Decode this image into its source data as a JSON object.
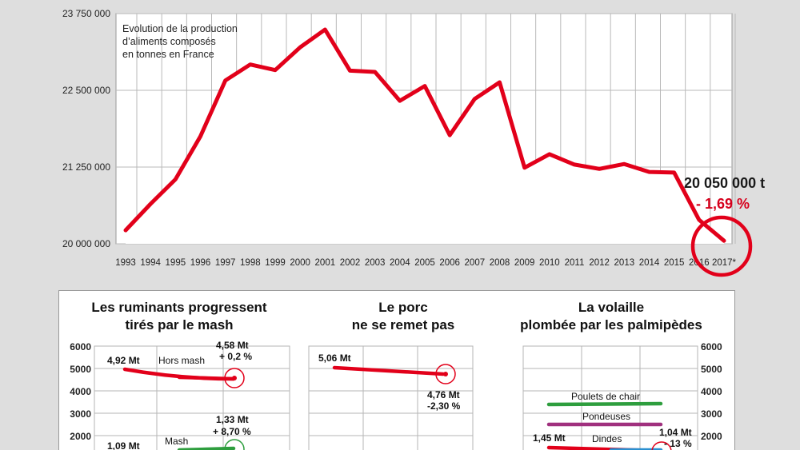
{
  "chart_data": [
    {
      "type": "line",
      "title": "Evolution de la production d’aliments composés en tonnes en France",
      "title_lines": [
        "Evolution de la production",
        "d’aliments composés",
        "en tonnes en France"
      ],
      "x": [
        "1993",
        "1994",
        "1995",
        "1996",
        "1997",
        "1998",
        "1999",
        "2000",
        "2001",
        "2002",
        "2003",
        "2004",
        "2005",
        "2006",
        "2007",
        "2008",
        "2009",
        "2010",
        "2011",
        "2012",
        "2013",
        "2014",
        "2015",
        "2016",
        "2017*"
      ],
      "series": [
        {
          "values": [
            20220000,
            20650000,
            21050000,
            21750000,
            22660000,
            22920000,
            22830000,
            23200000,
            23490000,
            22820000,
            22800000,
            22330000,
            22570000,
            21770000,
            22360000,
            22630000,
            21240000,
            21460000,
            21290000,
            21220000,
            21300000,
            21170000,
            21160000,
            20390000,
            20050000
          ]
        }
      ],
      "yticks": [
        "23 750 000",
        "22 500 000",
        "21 250 000",
        "20 000 000"
      ],
      "ytick_values": [
        23750000,
        22500000,
        21250000,
        20000000
      ],
      "ylim": [
        20000000,
        23750000
      ],
      "grid": true,
      "line_color": "#e2001a",
      "annotation": {
        "value": "20 050 000 t",
        "change": "- 1,69 %"
      }
    },
    {
      "type": "line",
      "title_lines": [
        "Les ruminants progressent",
        "tirés par le mash"
      ],
      "yticks": [
        "6000",
        "5000",
        "4000",
        "3000",
        "2000"
      ],
      "ytick_values": [
        6000,
        5000,
        4000,
        3000,
        2000
      ],
      "series": [
        {
          "name": "Hors mash",
          "values": [
            4920,
            4580
          ],
          "color": "#e2001a",
          "start_label": "4,92 Mt",
          "end_label": [
            "4,58 Mt",
            "+ 0,2 %"
          ]
        },
        {
          "name": "Mash",
          "values": [
            1090,
            1330
          ],
          "color": "#2e9e3e",
          "start_label": "1,09 Mt",
          "end_label": [
            "1,33 Mt",
            "+ 8,70 %"
          ]
        }
      ]
    },
    {
      "type": "line",
      "title_lines": [
        "Le porc",
        "ne se remet pas"
      ],
      "series": [
        {
          "values": [
            5060,
            4760
          ],
          "color": "#e2001a",
          "start_label": "5,06 Mt",
          "end_label": [
            "4,76 Mt",
            "-2,30 %"
          ]
        }
      ]
    },
    {
      "type": "line",
      "title_lines": [
        "La volaille",
        "plombée par les palmipèdes"
      ],
      "yticks": [
        "6000",
        "5000",
        "4000",
        "3000",
        "2000"
      ],
      "ytick_values": [
        6000,
        5000,
        4000,
        3000,
        2000
      ],
      "series": [
        {
          "name": "Poulets de chair",
          "color": "#2e9e3e"
        },
        {
          "name": "Pondeuses",
          "color": "#a0307e"
        },
        {
          "name": "Dindes",
          "values": [
            1450,
            1040
          ],
          "color": "#e2001a",
          "start_label": "1,45 Mt",
          "end_label": [
            "1,04 Mt",
            "- 13 %"
          ]
        }
      ]
    }
  ]
}
